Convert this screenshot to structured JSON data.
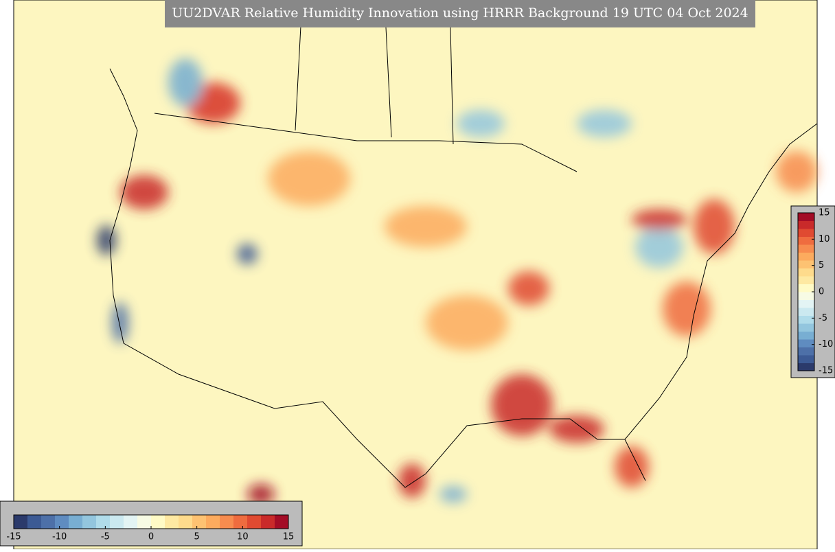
{
  "title": "UU2DVAR Relative Humidity Innovation using HRRR Background 19 UTC 04 Oct 2024",
  "colorbar_right": {
    "lim": [
      -15,
      15
    ],
    "ticks": [
      15,
      10,
      5,
      0,
      -5,
      -10,
      -15
    ]
  },
  "colorbar_bottom": {
    "lim": [
      -15,
      15
    ],
    "ticks": [
      -15,
      -10,
      -5,
      0,
      5,
      10,
      15
    ]
  },
  "colors": [
    "#2b3a6b",
    "#3c5a94",
    "#4d70a8",
    "#5f8cc0",
    "#78aed2",
    "#93c6de",
    "#b0dcea",
    "#cbe9f0",
    "#e3f4f4",
    "#f7fbe4",
    "#fffbc6",
    "#fee9a2",
    "#fedb8c",
    "#fdc272",
    "#fcab5e",
    "#f78c4f",
    "#ef6c3f",
    "#e04a31",
    "#c92a2a",
    "#a30c26"
  ]
}
